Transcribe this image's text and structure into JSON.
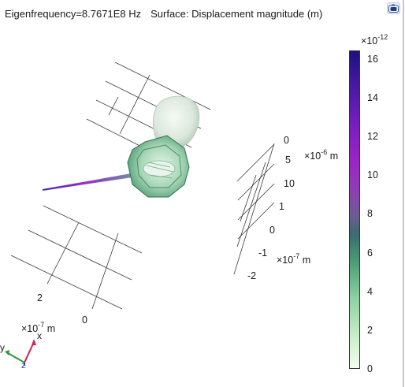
{
  "header": {
    "eigenfrequency": "Eigenfrequency=8.7671E8 Hz",
    "surface": "Surface: Displacement magnitude (m)"
  },
  "toolbar": {
    "screenshot_icon": "camera-icon"
  },
  "colorbar": {
    "exponent_base": "×10",
    "exponent_power": "-12",
    "ticks": [
      "16",
      "14",
      "12",
      "10",
      "8",
      "6",
      "4",
      "2",
      "0"
    ],
    "colors": [
      "#f3fdf1",
      "#8ed0a2",
      "#4b9a73",
      "#8e3fb3",
      "#1c1180"
    ]
  },
  "axes": {
    "right_y": {
      "exp_base": "×10",
      "exp_power": "-6",
      "unit": "m",
      "ticks": [
        "0",
        "5",
        "10"
      ]
    },
    "right_z": {
      "exp_base": "×10",
      "exp_power": "-7",
      "unit": "m",
      "ticks": [
        "1",
        "0",
        "-1",
        "-2"
      ]
    },
    "left_x": {
      "exp_base": "×10",
      "exp_power": "-7",
      "unit": "m",
      "ticks": [
        "2",
        "0"
      ]
    }
  },
  "triad": {
    "x": "x",
    "y": "y",
    "z": "z"
  }
}
